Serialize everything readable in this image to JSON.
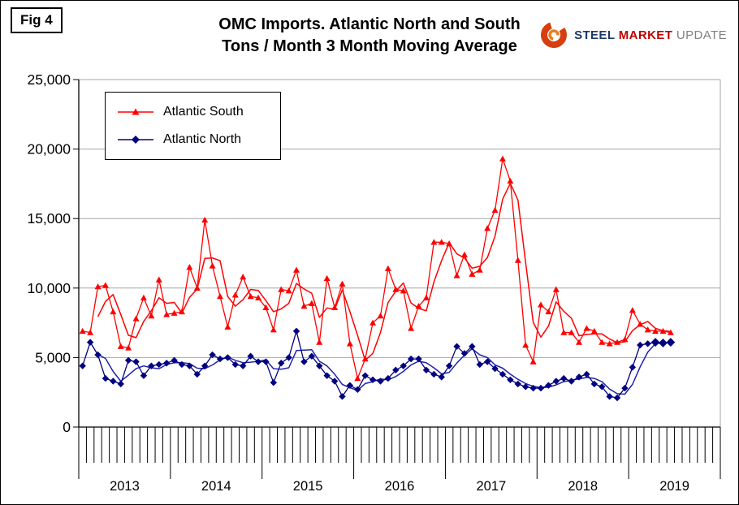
{
  "fig_label": "Fig 4",
  "title": {
    "line1": "OMC Imports. Atlantic North and South",
    "line2": "Tons / Month 3 Month Moving Average"
  },
  "logo": {
    "steel": "STEEL",
    "market": "MARKET",
    "update": "UPDATE",
    "steel_color": "#1F3864",
    "market_color": "#C00000",
    "update_color": "#808080",
    "icon_outer_color": "#D63F0F",
    "icon_inner_color": "#E87D1E"
  },
  "legend": [
    {
      "label": "Atlantic South",
      "color": "#FF0000",
      "marker": "triangle"
    },
    {
      "label": "Atlantic North",
      "color": "#000080",
      "marker": "diamond"
    }
  ],
  "chart_data": {
    "type": "line",
    "title": "OMC Imports. Atlantic North and South Tons / Month 3 Month Moving Average",
    "x_unit": "month",
    "x_start": "2013-01",
    "x_end": "2019-06",
    "x_tick_years": [
      "2013",
      "2014",
      "2015",
      "2016",
      "2017",
      "2018",
      "2019"
    ],
    "ylim": [
      0,
      25000
    ],
    "y_tick_step": 5000,
    "y_tick_labels": [
      "0",
      "5,000",
      "10,000",
      "15,000",
      "20,000",
      "25,000"
    ],
    "grid": "horizontal-only",
    "legend_position": "top-left-inside",
    "axis_months_shown": 84,
    "series": [
      {
        "name": "Atlantic South",
        "color": "#FF0000",
        "marker": "triangle",
        "values": [
          6900,
          6800,
          10100,
          10200,
          8300,
          5800,
          5700,
          7800,
          9300,
          8000,
          10600,
          8100,
          8200,
          8300,
          11500,
          10000,
          14900,
          11600,
          9400,
          7200,
          9500,
          10800,
          9400,
          9300,
          8600,
          7000,
          9900,
          9800,
          11300,
          8700,
          8900,
          6100,
          10700,
          8600,
          10300,
          6000,
          3500,
          4900,
          7500,
          8000,
          11400,
          9900,
          9800,
          7100,
          8700,
          9300,
          13300,
          13300,
          13200,
          10900,
          12400,
          11000,
          11300,
          14300,
          15600,
          19300,
          17700,
          12000,
          5900,
          4700,
          8800,
          8300,
          9900,
          6800,
          6800,
          6100,
          7100,
          6900,
          6100,
          6000,
          6100,
          6300,
          8400,
          7400,
          7000,
          6900,
          6900,
          6800
        ]
      },
      {
        "name": "Atlantic North",
        "color": "#000080",
        "marker": "diamond",
        "values": [
          4400,
          6100,
          5200,
          3500,
          3300,
          3100,
          4800,
          4700,
          3700,
          4400,
          4500,
          4600,
          4800,
          4500,
          4400,
          3800,
          4400,
          5200,
          4900,
          5000,
          4500,
          4400,
          5100,
          4700,
          4700,
          3200,
          4600,
          5000,
          6900,
          4700,
          5100,
          4400,
          3700,
          3300,
          2200,
          3000,
          2700,
          3700,
          3400,
          3300,
          3500,
          4100,
          4400,
          4900,
          4900,
          4100,
          3800,
          3600,
          4400,
          5800,
          5300,
          5800,
          4500,
          4700,
          4200,
          3800,
          3400,
          3100,
          2900,
          2800,
          2800,
          3000,
          3300,
          3500,
          3300,
          3600,
          3800,
          3100,
          2900,
          2200,
          2100,
          2800,
          4300,
          5900,
          6000,
          6100,
          6050,
          6100
        ]
      }
    ],
    "overlays": [
      {
        "name": "Atlantic South 3-month moving average",
        "color": "#FF0000",
        "derived": "trailing-3-month-average of Atlantic South"
      },
      {
        "name": "Atlantic North 3-month moving average",
        "color": "#2222AA",
        "derived": "trailing-3-month-average of Atlantic North"
      }
    ]
  }
}
